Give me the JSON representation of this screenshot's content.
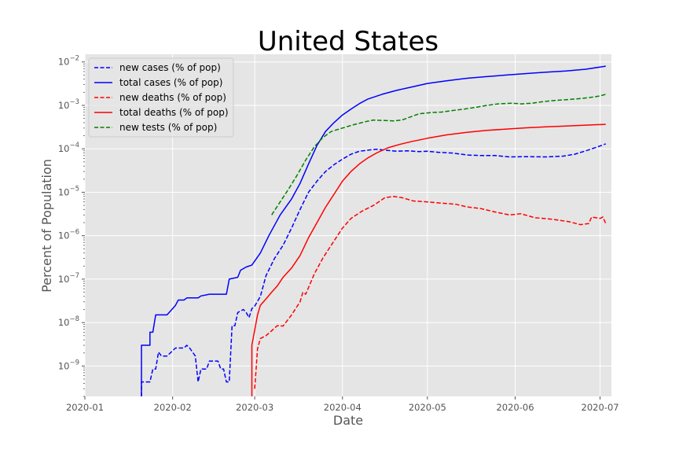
{
  "chart_data": {
    "type": "line",
    "title": "United States",
    "xlabel": "Date",
    "ylabel": "Percent of Population",
    "yscale": "log",
    "grid": true,
    "legend_position": "top-left",
    "xlim": [
      "2020-01-01",
      "2020-07-05"
    ],
    "ylim": [
      2e-10,
      0.015
    ],
    "x_ticks": [
      {
        "date": "2020-01-01",
        "label": "2020-01"
      },
      {
        "date": "2020-02-01",
        "label": "2020-02"
      },
      {
        "date": "2020-03-01",
        "label": "2020-03"
      },
      {
        "date": "2020-04-01",
        "label": "2020-04"
      },
      {
        "date": "2020-05-01",
        "label": "2020-05"
      },
      {
        "date": "2020-06-01",
        "label": "2020-06"
      },
      {
        "date": "2020-07-01",
        "label": "2020-07"
      }
    ],
    "y_ticks": [
      {
        "value": 1e-09,
        "label": "10",
        "exp": "−9"
      },
      {
        "value": 1e-08,
        "label": "10",
        "exp": "−8"
      },
      {
        "value": 1e-07,
        "label": "10",
        "exp": "−7"
      },
      {
        "value": 1e-06,
        "label": "10",
        "exp": "−6"
      },
      {
        "value": 1e-05,
        "label": "10",
        "exp": "−5"
      },
      {
        "value": 0.0001,
        "label": "10",
        "exp": "−4"
      },
      {
        "value": 0.001,
        "label": "10",
        "exp": "−3"
      },
      {
        "value": 0.01,
        "label": "10",
        "exp": "−2"
      }
    ],
    "series": [
      {
        "name": "new cases (% of pop)",
        "color": "#0000ff",
        "dash": true,
        "points": [
          [
            "2020-01-21",
            2e-10
          ],
          [
            "2020-01-21",
            4.3e-10
          ],
          [
            "2020-01-24",
            4.3e-10
          ],
          [
            "2020-01-25",
            8.5e-10
          ],
          [
            "2020-01-26",
            8.5e-10
          ],
          [
            "2020-01-27",
            2.1e-09
          ],
          [
            "2020-01-28",
            1.7e-09
          ],
          [
            "2020-01-30",
            1.7e-09
          ],
          [
            "2020-02-02",
            2.6e-09
          ],
          [
            "2020-02-05",
            2.6e-09
          ],
          [
            "2020-02-06",
            3e-09
          ],
          [
            "2020-02-07",
            2.6e-09
          ],
          [
            "2020-02-09",
            1.7e-09
          ],
          [
            "2020-02-10",
            4.3e-10
          ],
          [
            "2020-02-11",
            8.5e-10
          ],
          [
            "2020-02-13",
            8.5e-10
          ],
          [
            "2020-02-14",
            1.3e-09
          ],
          [
            "2020-02-17",
            1.3e-09
          ],
          [
            "2020-02-18",
            8.5e-10
          ],
          [
            "2020-02-19",
            8.5e-10
          ],
          [
            "2020-02-20",
            4.3e-10
          ],
          [
            "2020-02-21",
            4.3e-10
          ],
          [
            "2020-02-22",
            8.5e-09
          ],
          [
            "2020-02-23",
            8.5e-09
          ],
          [
            "2020-02-24",
            1.7e-08
          ],
          [
            "2020-02-26",
            2e-08
          ],
          [
            "2020-02-27",
            1.7e-08
          ],
          [
            "2020-02-28",
            1.3e-08
          ],
          [
            "2020-02-29",
            2.1e-08
          ],
          [
            "2020-03-01",
            2.4e-08
          ],
          [
            "2020-03-03",
            4e-08
          ],
          [
            "2020-03-05",
            1.2e-07
          ],
          [
            "2020-03-08",
            3e-07
          ],
          [
            "2020-03-11",
            6e-07
          ],
          [
            "2020-03-14",
            1.5e-06
          ],
          [
            "2020-03-17",
            4e-06
          ],
          [
            "2020-03-20",
            1e-05
          ],
          [
            "2020-03-23",
            1.8e-05
          ],
          [
            "2020-03-26",
            3e-05
          ],
          [
            "2020-03-29",
            4.3e-05
          ],
          [
            "2020-04-01",
            5.8e-05
          ],
          [
            "2020-04-04",
            7.5e-05
          ],
          [
            "2020-04-07",
            8.8e-05
          ],
          [
            "2020-04-10",
            9.3e-05
          ],
          [
            "2020-04-13",
            9.8e-05
          ],
          [
            "2020-04-17",
            9.2e-05
          ],
          [
            "2020-04-20",
            8.8e-05
          ],
          [
            "2020-04-24",
            9e-05
          ],
          [
            "2020-04-28",
            8.6e-05
          ],
          [
            "2020-05-01",
            8.8e-05
          ],
          [
            "2020-05-05",
            8.3e-05
          ],
          [
            "2020-05-10",
            8e-05
          ],
          [
            "2020-05-15",
            7.2e-05
          ],
          [
            "2020-05-20",
            7e-05
          ],
          [
            "2020-05-25",
            7e-05
          ],
          [
            "2020-05-30",
            6.5e-05
          ],
          [
            "2020-06-05",
            6.6e-05
          ],
          [
            "2020-06-12",
            6.5e-05
          ],
          [
            "2020-06-18",
            6.8e-05
          ],
          [
            "2020-06-22",
            7.5e-05
          ],
          [
            "2020-06-26",
            9e-05
          ],
          [
            "2020-06-30",
            0.00011
          ],
          [
            "2020-07-03",
            0.00013
          ]
        ]
      },
      {
        "name": "total cases (% of pop)",
        "color": "#0000ff",
        "dash": false,
        "points": [
          [
            "2020-01-21",
            2e-10
          ],
          [
            "2020-01-21",
            3e-09
          ],
          [
            "2020-01-24",
            3e-09
          ],
          [
            "2020-01-24",
            6e-09
          ],
          [
            "2020-01-25",
            6e-09
          ],
          [
            "2020-01-26",
            1.5e-08
          ],
          [
            "2020-01-30",
            1.5e-08
          ],
          [
            "2020-02-01",
            2.1e-08
          ],
          [
            "2020-02-02",
            2.5e-08
          ],
          [
            "2020-02-03",
            3.3e-08
          ],
          [
            "2020-02-05",
            3.3e-08
          ],
          [
            "2020-02-06",
            3.7e-08
          ],
          [
            "2020-02-10",
            3.7e-08
          ],
          [
            "2020-02-11",
            4.1e-08
          ],
          [
            "2020-02-14",
            4.5e-08
          ],
          [
            "2020-02-20",
            4.5e-08
          ],
          [
            "2020-02-21",
            1e-07
          ],
          [
            "2020-02-24",
            1.1e-07
          ],
          [
            "2020-02-25",
            1.6e-07
          ],
          [
            "2020-02-27",
            1.9e-07
          ],
          [
            "2020-02-29",
            2.1e-07
          ],
          [
            "2020-03-03",
            4e-07
          ],
          [
            "2020-03-06",
            1e-06
          ],
          [
            "2020-03-10",
            3e-06
          ],
          [
            "2020-03-14",
            7e-06
          ],
          [
            "2020-03-17",
            1.6e-05
          ],
          [
            "2020-03-20",
            4.5e-05
          ],
          [
            "2020-03-23",
            0.00012
          ],
          [
            "2020-03-26",
            0.00025
          ],
          [
            "2020-03-29",
            0.0004
          ],
          [
            "2020-04-01",
            0.0006
          ],
          [
            "2020-04-04",
            0.00082
          ],
          [
            "2020-04-07",
            0.0011
          ],
          [
            "2020-04-10",
            0.0014
          ],
          [
            "2020-04-15",
            0.0018
          ],
          [
            "2020-04-20",
            0.0022
          ],
          [
            "2020-04-25",
            0.0026
          ],
          [
            "2020-05-01",
            0.0032
          ],
          [
            "2020-05-08",
            0.0037
          ],
          [
            "2020-05-15",
            0.0042
          ],
          [
            "2020-05-22",
            0.0046
          ],
          [
            "2020-05-29",
            0.005
          ],
          [
            "2020-06-05",
            0.0054
          ],
          [
            "2020-06-12",
            0.0058
          ],
          [
            "2020-06-19",
            0.0062
          ],
          [
            "2020-06-26",
            0.0068
          ],
          [
            "2020-07-03",
            0.008
          ]
        ]
      },
      {
        "name": "new deaths (% of pop)",
        "color": "#ff0000",
        "dash": true,
        "points": [
          [
            "2020-03-01",
            3e-10
          ],
          [
            "2020-03-02",
            2.5e-09
          ],
          [
            "2020-03-03",
            4.3e-09
          ],
          [
            "2020-03-05",
            5e-09
          ],
          [
            "2020-03-07",
            6.5e-09
          ],
          [
            "2020-03-09",
            8.5e-09
          ],
          [
            "2020-03-11",
            8.3e-09
          ],
          [
            "2020-03-14",
            1.5e-08
          ],
          [
            "2020-03-17",
            3e-08
          ],
          [
            "2020-03-18",
            5e-08
          ],
          [
            "2020-03-19",
            4.5e-08
          ],
          [
            "2020-03-22",
            1.3e-07
          ],
          [
            "2020-03-25",
            3e-07
          ],
          [
            "2020-03-28",
            6e-07
          ],
          [
            "2020-04-01",
            1.5e-06
          ],
          [
            "2020-04-04",
            2.5e-06
          ],
          [
            "2020-04-08",
            3.7e-06
          ],
          [
            "2020-04-12",
            5e-06
          ],
          [
            "2020-04-16",
            7.5e-06
          ],
          [
            "2020-04-19",
            8e-06
          ],
          [
            "2020-04-22",
            7.5e-06
          ],
          [
            "2020-04-26",
            6.3e-06
          ],
          [
            "2020-05-01",
            6e-06
          ],
          [
            "2020-05-06",
            5.6e-06
          ],
          [
            "2020-05-11",
            5.3e-06
          ],
          [
            "2020-05-15",
            4.6e-06
          ],
          [
            "2020-05-20",
            4.2e-06
          ],
          [
            "2020-05-25",
            3.5e-06
          ],
          [
            "2020-05-30",
            3e-06
          ],
          [
            "2020-06-03",
            3.2e-06
          ],
          [
            "2020-06-08",
            2.6e-06
          ],
          [
            "2020-06-14",
            2.4e-06
          ],
          [
            "2020-06-20",
            2.1e-06
          ],
          [
            "2020-06-24",
            1.8e-06
          ],
          [
            "2020-06-27",
            1.9e-06
          ],
          [
            "2020-06-28",
            2.7e-06
          ],
          [
            "2020-07-01",
            2.5e-06
          ],
          [
            "2020-07-02",
            2.7e-06
          ],
          [
            "2020-07-03",
            1.9e-06
          ]
        ]
      },
      {
        "name": "total deaths (% of pop)",
        "color": "#ff0000",
        "dash": false,
        "points": [
          [
            "2020-02-29",
            2e-10
          ],
          [
            "2020-02-29",
            3e-09
          ],
          [
            "2020-03-02",
            1.5e-08
          ],
          [
            "2020-03-03",
            2.5e-08
          ],
          [
            "2020-03-05",
            3.5e-08
          ],
          [
            "2020-03-07",
            5e-08
          ],
          [
            "2020-03-09",
            7e-08
          ],
          [
            "2020-03-11",
            1.1e-07
          ],
          [
            "2020-03-14",
            1.8e-07
          ],
          [
            "2020-03-17",
            3.5e-07
          ],
          [
            "2020-03-20",
            9e-07
          ],
          [
            "2020-03-23",
            2e-06
          ],
          [
            "2020-03-26",
            4.5e-06
          ],
          [
            "2020-03-29",
            9e-06
          ],
          [
            "2020-04-01",
            1.8e-05
          ],
          [
            "2020-04-04",
            3e-05
          ],
          [
            "2020-04-07",
            4.5e-05
          ],
          [
            "2020-04-10",
            6.2e-05
          ],
          [
            "2020-04-13",
            8e-05
          ],
          [
            "2020-04-17",
            0.000105
          ],
          [
            "2020-04-21",
            0.000125
          ],
          [
            "2020-04-25",
            0.000145
          ],
          [
            "2020-05-01",
            0.000175
          ],
          [
            "2020-05-08",
            0.00021
          ],
          [
            "2020-05-15",
            0.00024
          ],
          [
            "2020-05-22",
            0.000265
          ],
          [
            "2020-05-29",
            0.000285
          ],
          [
            "2020-06-05",
            0.000305
          ],
          [
            "2020-06-12",
            0.00032
          ],
          [
            "2020-06-19",
            0.000335
          ],
          [
            "2020-06-26",
            0.00035
          ],
          [
            "2020-07-03",
            0.000365
          ]
        ]
      },
      {
        "name": "new tests (% of pop)",
        "color": "#008000",
        "dash": true,
        "points": [
          [
            "2020-03-07",
            3e-06
          ],
          [
            "2020-03-10",
            6e-06
          ],
          [
            "2020-03-13",
            1.2e-05
          ],
          [
            "2020-03-16",
            2.5e-05
          ],
          [
            "2020-03-19",
            5.5e-05
          ],
          [
            "2020-03-22",
            0.00011
          ],
          [
            "2020-03-25",
            0.00018
          ],
          [
            "2020-03-28",
            0.00025
          ],
          [
            "2020-04-01",
            0.0003
          ],
          [
            "2020-04-05",
            0.00036
          ],
          [
            "2020-04-09",
            0.00042
          ],
          [
            "2020-04-12",
            0.00046
          ],
          [
            "2020-04-15",
            0.00045
          ],
          [
            "2020-04-19",
            0.00044
          ],
          [
            "2020-04-22",
            0.00046
          ],
          [
            "2020-04-25",
            0.00054
          ],
          [
            "2020-04-28",
            0.00064
          ],
          [
            "2020-05-02",
            0.00068
          ],
          [
            "2020-05-06",
            0.0007
          ],
          [
            "2020-05-10",
            0.00076
          ],
          [
            "2020-05-14",
            0.00082
          ],
          [
            "2020-05-18",
            0.0009
          ],
          [
            "2020-05-22",
            0.001
          ],
          [
            "2020-05-26",
            0.00108
          ],
          [
            "2020-05-31",
            0.00112
          ],
          [
            "2020-06-03",
            0.00108
          ],
          [
            "2020-06-07",
            0.00112
          ],
          [
            "2020-06-11",
            0.00122
          ],
          [
            "2020-06-15",
            0.0013
          ],
          [
            "2020-06-19",
            0.00135
          ],
          [
            "2020-06-23",
            0.00142
          ],
          [
            "2020-06-27",
            0.0015
          ],
          [
            "2020-07-01",
            0.00165
          ],
          [
            "2020-07-03",
            0.0018
          ]
        ]
      }
    ]
  }
}
